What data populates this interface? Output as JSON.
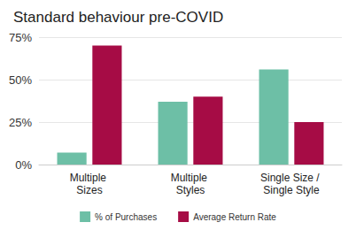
{
  "chart_data": {
    "type": "bar",
    "title": "Standard behaviour pre-COVID",
    "categories": [
      "Multiple Sizes",
      "Multiple Styles",
      "Single Size / Single Style"
    ],
    "series": [
      {
        "name": "% of Purchases",
        "color": "#6dbfa6",
        "values": [
          7,
          37,
          56
        ]
      },
      {
        "name": "Average Return Rate",
        "color": "#a60c45",
        "values": [
          70,
          40,
          25
        ]
      }
    ],
    "ylim": [
      0,
      75
    ],
    "yticks": [
      {
        "value": 0,
        "label": "0%"
      },
      {
        "value": 25,
        "label": "25%"
      },
      {
        "value": 50,
        "label": "50%"
      },
      {
        "value": 75,
        "label": "75%"
      }
    ],
    "grid": true,
    "legend": "bottom"
  }
}
